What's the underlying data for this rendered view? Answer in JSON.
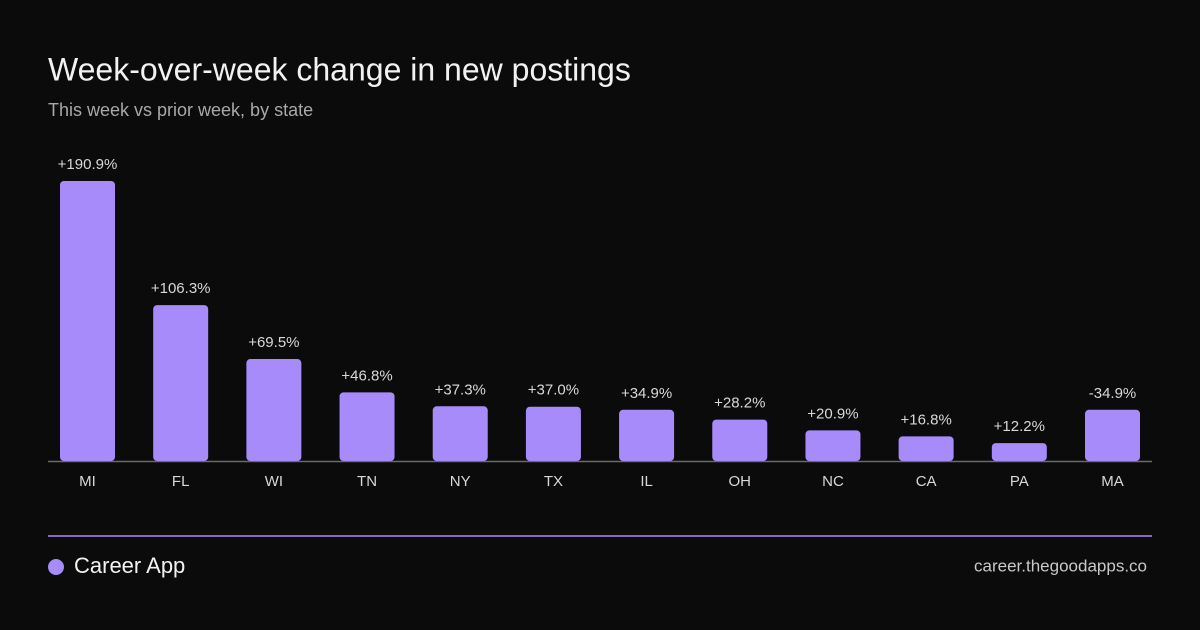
{
  "chart_data": {
    "type": "bar",
    "title": "Week-over-week  change in new postings",
    "subtitle": "This week vs prior week, by state",
    "categories": [
      "MI",
      "FL",
      "WI",
      "TN",
      "NY",
      "TX",
      "IL",
      "OH",
      "NC",
      "CA",
      "PA",
      "MA"
    ],
    "values": [
      190.9,
      106.3,
      69.5,
      46.8,
      37.3,
      37.0,
      34.9,
      28.2,
      20.9,
      16.8,
      12.2,
      -34.9
    ],
    "value_labels": [
      "+190.9%",
      "+106.3%",
      "+69.5%",
      "+46.8%",
      "+37.3%",
      "+37.0%",
      "+34.9%",
      "+28.2%",
      "+20.9%",
      "+16.8%",
      "+12.2%",
      "-34.9%"
    ],
    "color": "#a78bfa"
  },
  "footer": {
    "brand": "Career App",
    "url": "career.thegoodapps.co"
  }
}
